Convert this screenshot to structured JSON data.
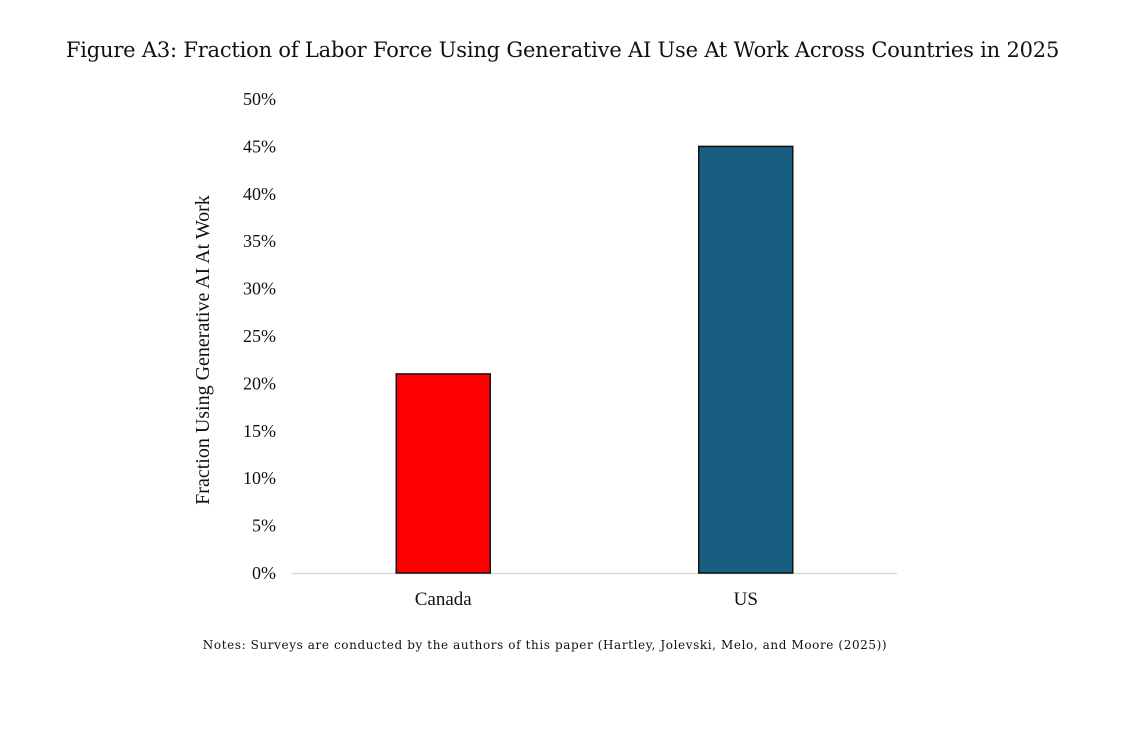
{
  "figure": {
    "caption": "Figure A3: Fraction of Labor Force Using Generative AI Use At Work Across Countries in 2025",
    "notes": "Notes: Surveys are conducted by the authors of this paper (Hartley, Jolevski, Melo, and Moore (2025))"
  },
  "chart_data": {
    "type": "bar",
    "title": "",
    "xlabel": "",
    "ylabel": "Fraction Using Generative AI At Work",
    "categories": [
      "Canada",
      "US"
    ],
    "values": [
      21,
      45
    ],
    "ylim": [
      0,
      50
    ],
    "yticks": [
      "0%",
      "5%",
      "10%",
      "15%",
      "20%",
      "25%",
      "30%",
      "35%",
      "40%",
      "45%",
      "50%"
    ],
    "grid": false,
    "legend": "none",
    "colors": [
      "#ff0000",
      "#175e80"
    ]
  }
}
